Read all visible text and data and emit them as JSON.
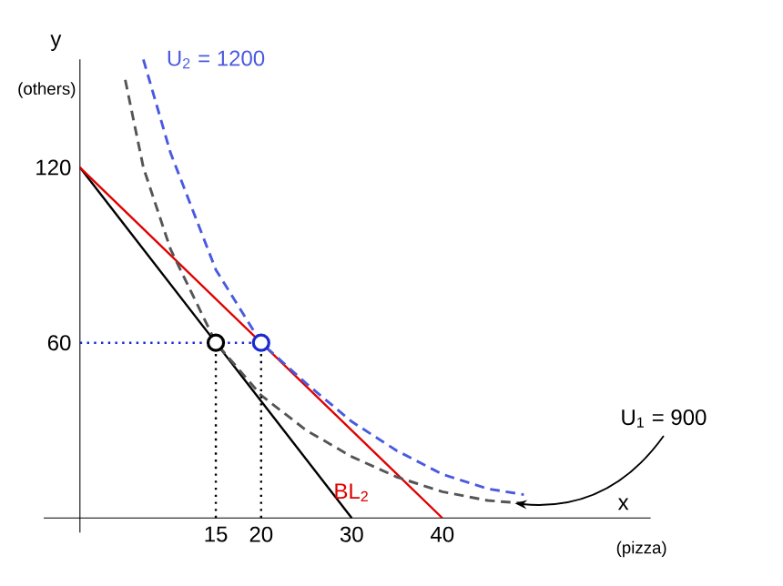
{
  "chart_data": {
    "type": "line",
    "xlabel": "x",
    "ylabel": "y",
    "xlim": [
      -4,
      63
    ],
    "ylim": [
      -5,
      157
    ],
    "xticks": [
      15,
      20,
      30,
      40
    ],
    "yticks": [
      60,
      120
    ],
    "annotations": [
      "(others)",
      "(pizza)",
      {
        "text": "U$_{2}$ = 1200",
        "x": 7,
        "y": 157
      },
      {
        "text": "BL$_{2}$",
        "x": 34,
        "y": 18
      },
      {
        "text": "U$_{1}$ = 900",
        "x": 48,
        "y": 5
      }
    ],
    "series": [
      {
        "type": "line",
        "color": "#000000",
        "line_style": "solid",
        "x": [
          0,
          30
        ],
        "values": [
          120,
          0
        ]
      },
      {
        "type": "line",
        "color": "#e00000",
        "line_style": "solid",
        "x": [
          0,
          40
        ],
        "values": [
          120,
          0
        ]
      },
      {
        "type": "line",
        "color": "#555555",
        "line_style": "dashed",
        "x": [
          5,
          7,
          10,
          15,
          20,
          25,
          30,
          35,
          40,
          45,
          49
        ],
        "values": [
          150,
          120,
          92,
          60,
          42,
          30,
          21,
          14,
          9,
          6,
          5
        ]
      },
      {
        "type": "line",
        "color": "#4a5ae0",
        "line_style": "dashed",
        "x": [
          7,
          10,
          15,
          20,
          25,
          30,
          35,
          40,
          45,
          49
        ],
        "values": [
          157,
          125,
          85,
          60,
          46,
          33,
          23,
          15,
          10,
          8
        ]
      },
      {
        "type": "line",
        "color": "#1a2ad0",
        "line_style": "dotted",
        "x": [
          0,
          20
        ],
        "values": [
          60,
          60
        ]
      },
      {
        "type": "line",
        "color": "#000000",
        "line_style": "dotted",
        "x": [
          15,
          15
        ],
        "values": [
          0,
          60
        ]
      },
      {
        "type": "line",
        "color": "#000000",
        "line_style": "dotted",
        "x": [
          20,
          20
        ],
        "values": [
          0,
          60
        ]
      },
      {
        "type": "scatter",
        "color": "#000000",
        "marker": "circle",
        "x": [
          15
        ],
        "values": [
          60
        ]
      },
      {
        "type": "scatter",
        "color": "#1a2ad0",
        "marker": "circle",
        "x": [
          20
        ],
        "values": [
          60
        ]
      }
    ]
  }
}
